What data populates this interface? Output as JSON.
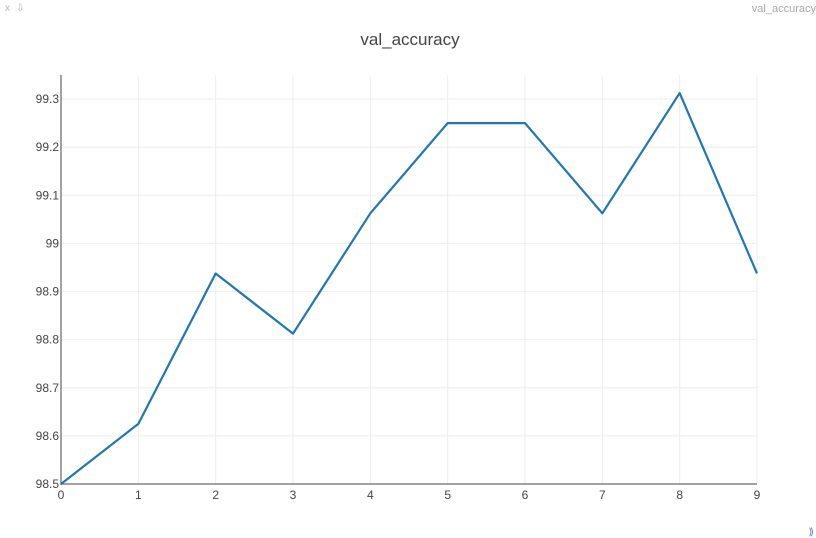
{
  "window": {
    "close_glyph": "x",
    "download_glyph": "⇩",
    "title": "val_accuracy",
    "resize_glyph": "⟫"
  },
  "chart_data": {
    "type": "line",
    "title": "val_accuracy",
    "xlabel": "",
    "ylabel": "",
    "x": [
      0,
      1,
      2,
      3,
      4,
      5,
      6,
      7,
      8,
      9
    ],
    "series": [
      {
        "values": [
          98.5,
          98.625,
          98.9375,
          98.8125,
          99.0625,
          99.25,
          99.25,
          99.0625,
          99.3125,
          98.9375
        ]
      }
    ],
    "xlim": [
      0,
      9
    ],
    "ylim": [
      98.5,
      99.35
    ],
    "x_ticks": [
      "0",
      "1",
      "2",
      "3",
      "4",
      "5",
      "6",
      "7",
      "8",
      "9"
    ],
    "y_ticks": [
      {
        "value": 98.5,
        "label": "98.5"
      },
      {
        "value": 98.6,
        "label": "98.6"
      },
      {
        "value": 98.7,
        "label": "98.7"
      },
      {
        "value": 98.8,
        "label": "98.8"
      },
      {
        "value": 98.9,
        "label": "98.9"
      },
      {
        "value": 99.0,
        "label": "99"
      },
      {
        "value": 99.1,
        "label": "99.1"
      },
      {
        "value": 99.2,
        "label": "99.2"
      },
      {
        "value": 99.3,
        "label": "99.3"
      }
    ],
    "grid": true,
    "line_color": "#1f77b4",
    "grid_color": "#eeeeee",
    "axis_color": "#444444"
  }
}
